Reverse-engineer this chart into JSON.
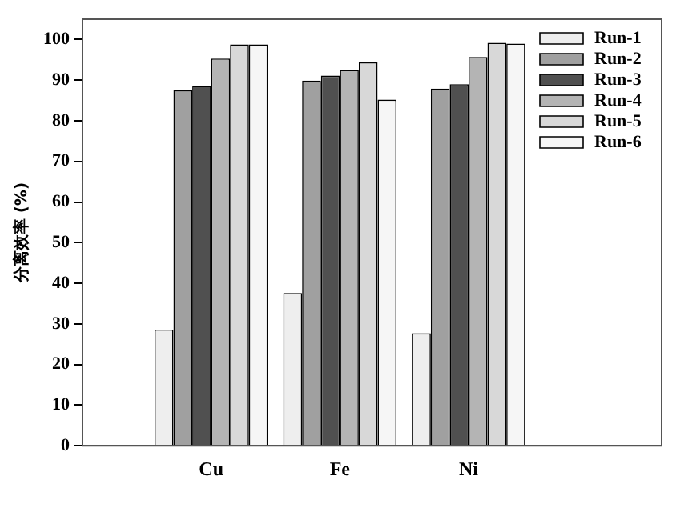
{
  "chart_data": {
    "type": "bar",
    "ylabel": "分离效率 (%)",
    "categories": [
      "Cu",
      "Fe",
      "Ni"
    ],
    "series": [
      {
        "name": "Run-1",
        "color": "#eeeeee",
        "values": [
          28.6,
          37.6,
          27.7
        ]
      },
      {
        "name": "Run-2",
        "color": "#a0a0a0",
        "values": [
          87.5,
          89.9,
          87.9
        ]
      },
      {
        "name": "Run-3",
        "color": "#505050",
        "values": [
          88.6,
          91.1,
          89.0
        ]
      },
      {
        "name": "Run-4",
        "color": "#b4b4b4",
        "values": [
          95.3,
          92.5,
          95.7
        ]
      },
      {
        "name": "Run-5",
        "color": "#d8d8d8",
        "values": [
          98.8,
          94.4,
          99.2
        ]
      },
      {
        "name": "Run-6",
        "color": "#f6f6f6",
        "values": [
          98.8,
          85.2,
          99.0
        ]
      }
    ],
    "ylim": [
      0,
      105
    ],
    "yticks": [
      0,
      10,
      20,
      30,
      40,
      50,
      60,
      70,
      80,
      90,
      100
    ],
    "grid": false,
    "legend": "top right"
  }
}
